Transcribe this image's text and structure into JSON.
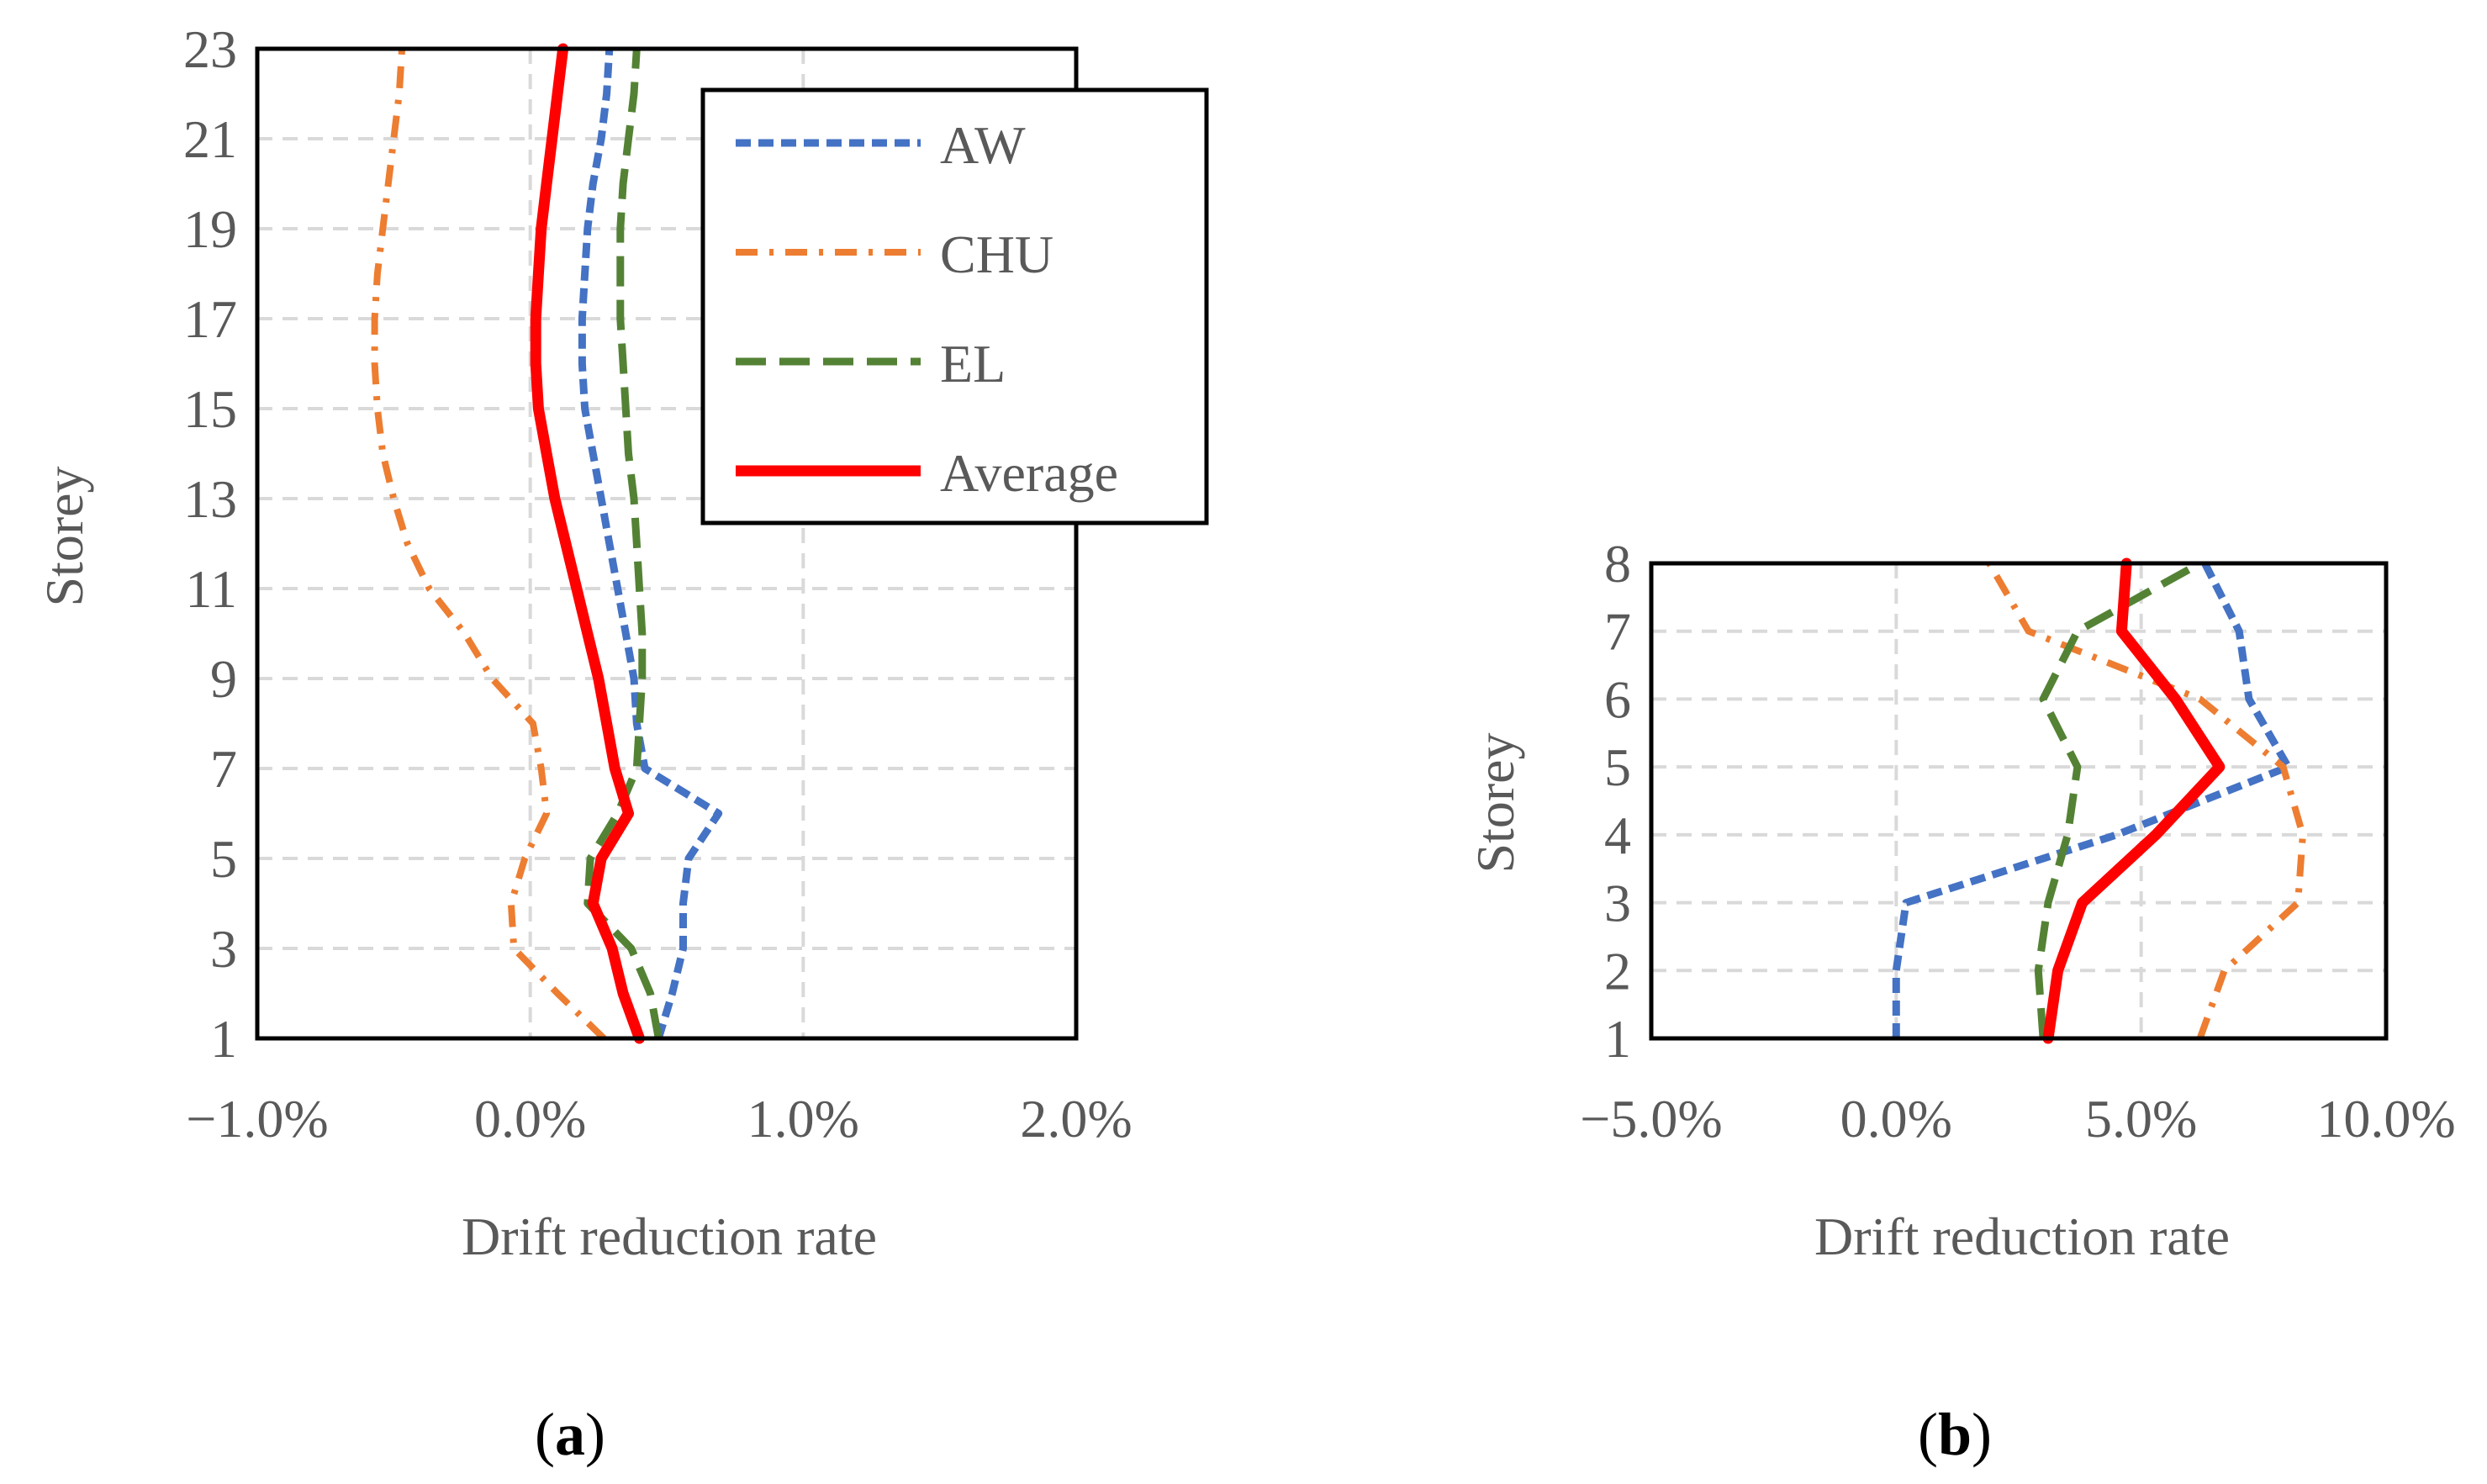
{
  "colors": {
    "aw": "#4472C4",
    "chu": "#ED7D31",
    "el": "#548235",
    "average": "#FF0000",
    "grid": "#D9D9D9",
    "text": "#595959",
    "frame": "#000000"
  },
  "legend": {
    "entries": [
      "AW",
      "CHU",
      "EL",
      "Average"
    ]
  },
  "chart_data": [
    {
      "type": "line",
      "panel": "(a)",
      "panel_paren_open": "(",
      "panel_letter": "a",
      "panel_paren_close": ")",
      "title": "",
      "xlabel": "Drift reduction rate",
      "ylabel": "Storey",
      "xlim": [
        -0.01,
        0.02
      ],
      "ylim": [
        1,
        23
      ],
      "xticks": [
        -0.01,
        0.0,
        0.01,
        0.02
      ],
      "xtick_labels": [
        "−1.0%",
        "0.0%",
        "1.0%",
        "2.0%"
      ],
      "yticks": [
        1,
        3,
        5,
        7,
        9,
        11,
        13,
        15,
        17,
        19,
        21,
        23
      ],
      "ytick_labels": [
        "1",
        "3",
        "5",
        "7",
        "9",
        "11",
        "13",
        "15",
        "17",
        "19",
        "21",
        "23"
      ],
      "grid": true,
      "legend_position": "top-right",
      "series": [
        {
          "name": "AW",
          "style": "short-dash",
          "storeys": [
            1,
            2,
            3,
            4,
            5,
            6,
            7,
            8,
            9,
            10,
            11,
            12,
            13,
            14,
            15,
            16,
            17,
            18,
            19,
            20,
            21,
            22,
            23
          ],
          "values": [
            0.0047,
            0.0052,
            0.0056,
            0.0056,
            0.0058,
            0.0069,
            0.0042,
            0.0039,
            0.0038,
            0.0035,
            0.0032,
            0.0029,
            0.0026,
            0.0023,
            0.002,
            0.0019,
            0.0019,
            0.002,
            0.0021,
            0.0023,
            0.0026,
            0.0028,
            0.0029
          ]
        },
        {
          "name": "CHU",
          "style": "dash-dot",
          "storeys": [
            1,
            2,
            3,
            4,
            5,
            6,
            7,
            8,
            9,
            10,
            11,
            12,
            13,
            14,
            15,
            16,
            17,
            18,
            19,
            20,
            21,
            22,
            23
          ],
          "values": [
            0.0027,
            0.001,
            -0.0006,
            -0.0007,
            -0.0002,
            0.0006,
            0.0004,
            0.0001,
            -0.0014,
            -0.0024,
            -0.0037,
            -0.0045,
            -0.005,
            -0.0054,
            -0.0056,
            -0.0057,
            -0.0057,
            -0.0056,
            -0.0054,
            -0.0052,
            -0.005,
            -0.0048,
            -0.0047
          ]
        },
        {
          "name": "EL",
          "style": "long-dash",
          "storeys": [
            1,
            2,
            3,
            4,
            5,
            6,
            7,
            8,
            9,
            10,
            11,
            12,
            13,
            14,
            15,
            16,
            17,
            18,
            19,
            20,
            21,
            22,
            23
          ],
          "values": [
            0.0047,
            0.0044,
            0.0037,
            0.0021,
            0.0022,
            0.0032,
            0.0039,
            0.004,
            0.0041,
            0.0041,
            0.004,
            0.0039,
            0.0038,
            0.0036,
            0.0035,
            0.0034,
            0.0033,
            0.0033,
            0.0033,
            0.0034,
            0.0036,
            0.0038,
            0.0039
          ]
        },
        {
          "name": "Average",
          "style": "solid",
          "storeys": [
            1,
            2,
            3,
            4,
            5,
            6,
            7,
            8,
            9,
            10,
            11,
            12,
            13,
            14,
            15,
            16,
            17,
            18,
            19,
            20,
            21,
            22,
            23
          ],
          "values": [
            0.004,
            0.0034,
            0.003,
            0.0023,
            0.0026,
            0.0036,
            0.0031,
            0.0028,
            0.0025,
            0.0021,
            0.0017,
            0.0013,
            0.0009,
            0.0006,
            0.0003,
            0.0002,
            0.0002,
            0.0003,
            0.0004,
            0.0006,
            0.0008,
            0.001,
            0.0012
          ]
        }
      ]
    },
    {
      "type": "line",
      "panel": "(b)",
      "panel_paren_open": "(",
      "panel_letter": "b",
      "panel_paren_close": ")",
      "title": "",
      "xlabel": "Drift reduction rate",
      "ylabel": "Storey",
      "xlim": [
        -0.05,
        0.1
      ],
      "ylim": [
        1,
        8
      ],
      "xticks": [
        -0.05,
        0.0,
        0.05,
        0.1
      ],
      "xtick_labels": [
        "−5.0%",
        "0.0%",
        "5.0%",
        "10.0%"
      ],
      "yticks": [
        1,
        2,
        3,
        4,
        5,
        6,
        7,
        8
      ],
      "ytick_labels": [
        "1",
        "2",
        "3",
        "4",
        "5",
        "6",
        "7",
        "8"
      ],
      "grid": true,
      "series": [
        {
          "name": "AW",
          "style": "short-dash",
          "storeys": [
            1,
            2,
            3,
            4,
            5,
            6,
            7,
            8
          ],
          "values": [
            0.0,
            0.0,
            0.002,
            0.045,
            0.08,
            0.072,
            0.07,
            0.063
          ]
        },
        {
          "name": "CHU",
          "style": "dash-dot",
          "storeys": [
            1,
            2,
            3,
            4,
            5,
            6,
            7,
            8
          ],
          "values": [
            0.062,
            0.067,
            0.082,
            0.083,
            0.079,
            0.062,
            0.027,
            0.019
          ]
        },
        {
          "name": "EL",
          "style": "long-dash",
          "storeys": [
            1,
            2,
            3,
            4,
            5,
            6,
            7,
            8
          ],
          "values": [
            0.03,
            0.029,
            0.031,
            0.035,
            0.037,
            0.03,
            0.037,
            0.062
          ]
        },
        {
          "name": "Average",
          "style": "solid",
          "storeys": [
            1,
            2,
            3,
            4,
            5,
            6,
            7,
            8
          ],
          "values": [
            0.031,
            0.033,
            0.038,
            0.053,
            0.066,
            0.057,
            0.046,
            0.047
          ]
        }
      ]
    }
  ]
}
